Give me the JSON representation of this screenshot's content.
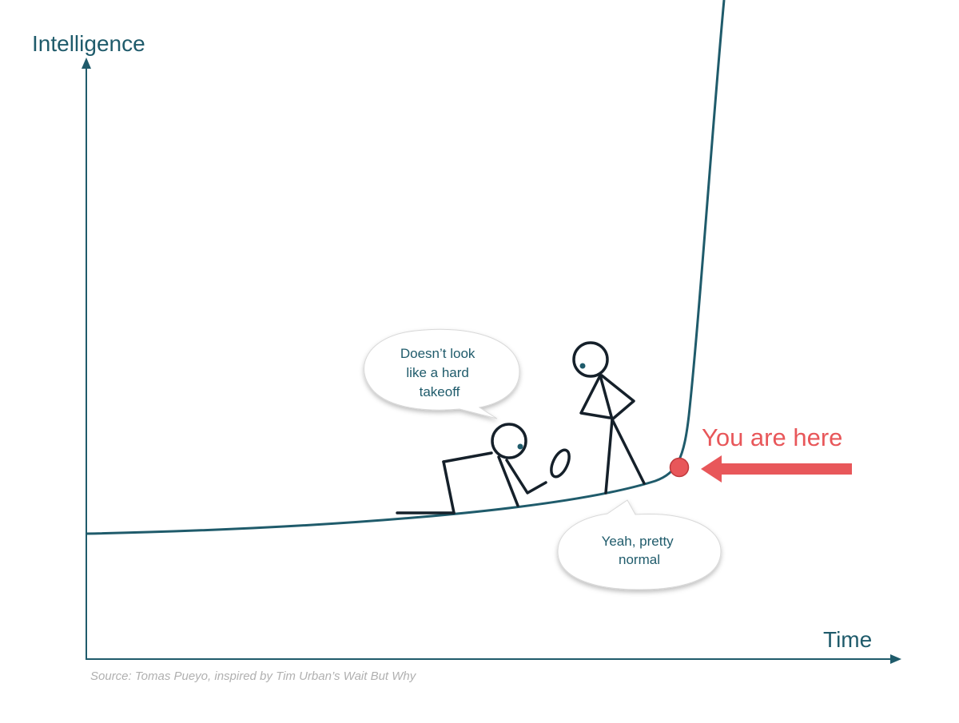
{
  "axes": {
    "y_label": "Intelligence",
    "x_label": "Time"
  },
  "marker": {
    "label": "You are here",
    "color": "#e8575a"
  },
  "bubbles": {
    "crouching_figure": [
      "Doesn’t look",
      "like a hard",
      "takeoff"
    ],
    "standing_figure": [
      "Yeah, pretty",
      "normal"
    ]
  },
  "source": "Source: Tomas Pueyo, inspired by Tim Urban’s Wait But Why",
  "colors": {
    "axis": "#1f5b6b",
    "curve": "#1f5b6b",
    "text": "#1f5b6b",
    "figure": "#15202a",
    "marker": "#e8575a",
    "source": "#b0b0b0"
  }
}
